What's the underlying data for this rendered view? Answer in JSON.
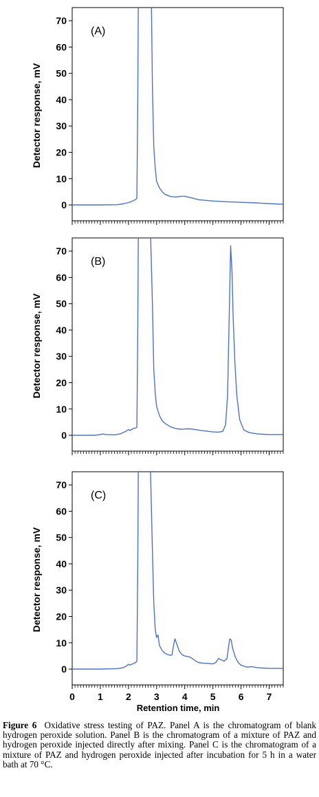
{
  "figure": {
    "x_axis_label": "Retention time, min",
    "caption_label": "Figure 6",
    "caption_text": "Oxidative stress testing of PAZ. Panel A is the chromatogram of blank hydrogen peroxide solution. Panel B is the chromatogram of a mixture of PAZ and hydrogen peroxide injected directly after mixing. Panel C is the chromatogram of a mixture of PAZ and hydrogen peroxide injected after incubation for 5 h in a water bath at 70 °C."
  },
  "colors": {
    "trace": "#4a72c4",
    "axis": "#000000"
  },
  "chart_data": [
    {
      "type": "line",
      "panel_label": "(A)",
      "ylabel": "Detector response, mV",
      "xlabel": "",
      "xlim": [
        0,
        7.5
      ],
      "ylim": [
        -6,
        75
      ],
      "yticks": [
        0,
        10,
        20,
        30,
        40,
        50,
        60,
        70
      ],
      "xticks": [],
      "series": [
        {
          "values_x": [
            0,
            1.0,
            1.6,
            1.8,
            2.0,
            2.15,
            2.25,
            2.3,
            2.33,
            2.36,
            2.4,
            2.5,
            2.6,
            2.7,
            2.8,
            2.85,
            2.9,
            2.95,
            3.0,
            3.1,
            3.2,
            3.3,
            3.5,
            3.7,
            3.85,
            4.0,
            4.2,
            4.5,
            5.0,
            5.5,
            6.0,
            6.5,
            7.2,
            7.5
          ],
          "values_y": [
            0,
            0,
            0.1,
            0.4,
            0.9,
            1.5,
            2.0,
            2.5,
            40,
            95,
            110,
            110,
            110,
            110,
            90,
            45,
            22,
            14,
            9,
            6.5,
            5.0,
            4.0,
            3.2,
            3.0,
            3.3,
            3.3,
            2.8,
            2.0,
            1.5,
            1.2,
            1.0,
            0.8,
            0.4,
            0.3
          ]
        }
      ]
    },
    {
      "type": "line",
      "panel_label": "(B)",
      "ylabel": "Detector response, mV",
      "xlabel": "",
      "xlim": [
        0,
        7.5
      ],
      "ylim": [
        -6,
        75
      ],
      "yticks": [
        0,
        10,
        20,
        30,
        40,
        50,
        60,
        70
      ],
      "xticks": [],
      "series": [
        {
          "values_x": [
            0,
            0.8,
            1.0,
            1.1,
            1.2,
            1.5,
            1.7,
            1.9,
            2.0,
            2.05,
            2.15,
            2.25,
            2.3,
            2.33,
            2.36,
            2.4,
            2.5,
            2.6,
            2.7,
            2.75,
            2.85,
            2.9,
            2.95,
            3.0,
            3.1,
            3.2,
            3.3,
            3.5,
            3.7,
            3.9,
            4.1,
            4.3,
            4.6,
            5.0,
            5.2,
            5.35,
            5.45,
            5.52,
            5.58,
            5.63,
            5.68,
            5.72,
            5.78,
            5.85,
            5.95,
            6.1,
            6.3,
            6.6,
            7.0,
            7.5
          ],
          "values_y": [
            0,
            0,
            0.3,
            0.5,
            0.3,
            0.2,
            0.5,
            1.5,
            2.2,
            1.8,
            2.5,
            2.8,
            3.0,
            40,
            95,
            110,
            110,
            110,
            110,
            90,
            50,
            25,
            16,
            11,
            7.5,
            5.5,
            4.5,
            3.2,
            2.5,
            2.3,
            2.5,
            2.3,
            1.8,
            1.3,
            1.2,
            1.5,
            4,
            15,
            45,
            72,
            62,
            45,
            28,
            15,
            6,
            2.0,
            1.0,
            0.5,
            0.3,
            0.3
          ]
        }
      ]
    },
    {
      "type": "line",
      "panel_label": "(C)",
      "ylabel": "Detector response, mV",
      "xlabel": "Retention time, min",
      "xlim": [
        0,
        7.5
      ],
      "ylim": [
        -6,
        75
      ],
      "yticks": [
        0,
        10,
        20,
        30,
        40,
        50,
        60,
        70
      ],
      "xticks": [
        "0",
        "1",
        "2",
        "3",
        "4",
        "5",
        "6",
        "7"
      ],
      "series": [
        {
          "values_x": [
            0,
            1.0,
            1.6,
            1.8,
            1.9,
            2.0,
            2.05,
            2.15,
            2.25,
            2.3,
            2.33,
            2.36,
            2.4,
            2.5,
            2.6,
            2.7,
            2.75,
            2.85,
            2.9,
            2.95,
            3.0,
            3.05,
            3.1,
            3.2,
            3.3,
            3.4,
            3.5,
            3.55,
            3.6,
            3.65,
            3.7,
            3.8,
            3.9,
            4.0,
            4.1,
            4.2,
            4.3,
            4.4,
            4.5,
            4.6,
            4.7,
            4.8,
            5.0,
            5.1,
            5.2,
            5.3,
            5.4,
            5.5,
            5.55,
            5.6,
            5.65,
            5.7,
            5.8,
            5.9,
            6.0,
            6.2,
            6.4,
            6.6,
            7.0,
            7.5
          ],
          "values_y": [
            0,
            0,
            0.2,
            0.5,
            1.0,
            1.8,
            1.5,
            2.0,
            2.5,
            3.0,
            40,
            95,
            110,
            110,
            110,
            110,
            90,
            45,
            25,
            15,
            12,
            13,
            9,
            7,
            6,
            5.5,
            5.2,
            5.5,
            9,
            11.5,
            10,
            7,
            5.5,
            5.0,
            4.8,
            4.5,
            3.8,
            3.0,
            2.5,
            2.3,
            2.2,
            2.2,
            2.0,
            2.5,
            4.0,
            3.5,
            3.0,
            4,
            8,
            11.5,
            11,
            8,
            4.5,
            2.5,
            1.5,
            0.8,
            0.9,
            0.5,
            0.3,
            0.3
          ]
        }
      ]
    }
  ]
}
